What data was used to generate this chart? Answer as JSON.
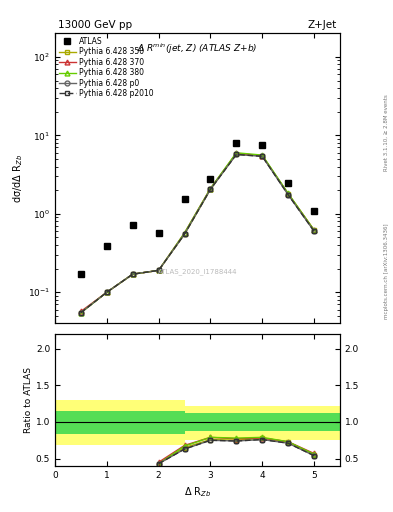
{
  "title_top": "13000 GeV pp",
  "title_right": "Z+Jet",
  "plot_title": "Δ R$^{min}$(jet, Z) (ATLAS Z+b)",
  "ylabel_main": "dσ/dΔ R$_{Zb}$",
  "ylabel_ratio": "Ratio to ATLAS",
  "xlabel": "Δ R$_{Zb}$",
  "watermark": "ATLAS_2020_I1788444",
  "right_label": "mcplots.cern.ch [arXiv:1306.3436]",
  "rivet_label": "Rivet 3.1.10, ≥ 2.8M events",
  "x_centers": [
    0.5,
    1.0,
    1.5,
    2.0,
    2.5,
    3.0,
    3.5,
    4.0,
    4.5,
    5.0
  ],
  "atlas_y": [
    0.17,
    0.39,
    0.72,
    0.57,
    1.55,
    2.75,
    8.0,
    7.5,
    2.5,
    1.1
  ],
  "p350_y": [
    0.055,
    0.1,
    0.17,
    0.19,
    0.55,
    2.05,
    5.8,
    5.5,
    1.8,
    0.62
  ],
  "p370_y": [
    0.057,
    0.1,
    0.17,
    0.19,
    0.57,
    2.1,
    5.9,
    5.5,
    1.8,
    0.62
  ],
  "p380_y": [
    0.055,
    0.1,
    0.17,
    0.19,
    0.57,
    2.1,
    6.0,
    5.6,
    1.82,
    0.62
  ],
  "p0_y": [
    0.055,
    0.1,
    0.17,
    0.19,
    0.55,
    2.05,
    5.7,
    5.4,
    1.75,
    0.6
  ],
  "p2010_y": [
    0.055,
    0.1,
    0.17,
    0.19,
    0.55,
    2.05,
    5.7,
    5.4,
    1.75,
    0.6
  ],
  "ratio_x": [
    1.5,
    2.0,
    2.5,
    3.0,
    3.5,
    4.0,
    4.5,
    5.0
  ],
  "ratio_p350": [
    null,
    0.43,
    0.65,
    0.76,
    0.75,
    0.78,
    0.73,
    0.55
  ],
  "ratio_p370": [
    null,
    0.45,
    0.68,
    0.79,
    0.77,
    0.78,
    0.73,
    0.57
  ],
  "ratio_p380": [
    null,
    0.43,
    0.67,
    0.79,
    0.78,
    0.79,
    0.73,
    0.56
  ],
  "ratio_p0": [
    null,
    0.43,
    0.63,
    0.75,
    0.74,
    0.76,
    0.71,
    0.54
  ],
  "ratio_p2010": [
    null,
    0.43,
    0.63,
    0.75,
    0.74,
    0.76,
    0.71,
    0.54
  ],
  "color_p350": "#aaaa00",
  "color_p370": "#cc3333",
  "color_p380": "#66cc00",
  "color_p0": "#666666",
  "color_p2010": "#333333",
  "ylim_main": [
    0.04,
    200
  ],
  "ylim_ratio": [
    0.4,
    2.2
  ],
  "xlim_main": [
    0,
    5.5
  ],
  "xlim_ratio": [
    0,
    5.5
  ]
}
